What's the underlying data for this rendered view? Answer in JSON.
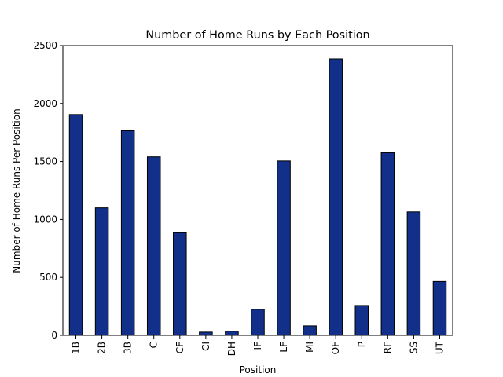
{
  "chart_data": {
    "type": "bar",
    "title": "Number of Home Runs by Each Position",
    "xlabel": "Position",
    "ylabel": "Number of Home Runs Per Position",
    "categories": [
      "1B",
      "2B",
      "3B",
      "C",
      "CF",
      "CI",
      "DH",
      "IF",
      "LF",
      "MI",
      "OF",
      "P",
      "RF",
      "SS",
      "UT"
    ],
    "values": [
      1905,
      1100,
      1765,
      1540,
      885,
      28,
      35,
      225,
      1505,
      82,
      2385,
      258,
      1575,
      1065,
      465
    ],
    "ylim": [
      0,
      2500
    ],
    "yticks": [
      0,
      500,
      1000,
      1500,
      2000,
      2500
    ],
    "grid": false,
    "legend": "none",
    "bar_color": "#12308a",
    "edge_color": "#000000"
  }
}
